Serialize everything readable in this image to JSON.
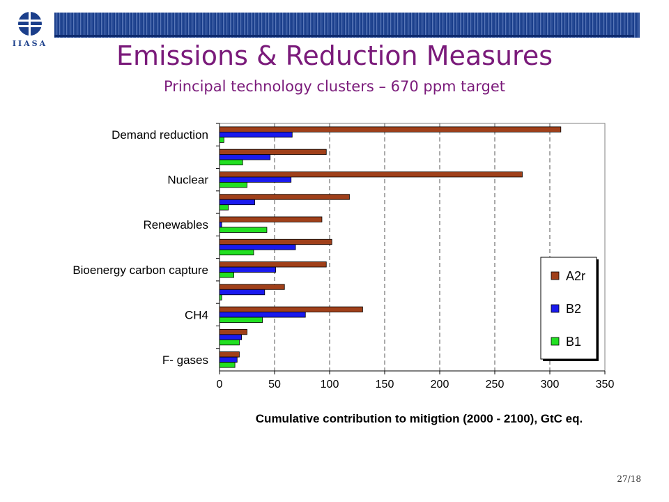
{
  "header": {
    "logo_text": "IIASA",
    "title": "Emissions & Reduction Measures",
    "subtitle": "Principal technology clusters – 670 ppm target"
  },
  "page_number": "27/18",
  "chart_data": {
    "type": "bar",
    "orientation": "horizontal",
    "categories": [
      "Demand reduction",
      "",
      "Nuclear",
      "",
      "Renewables",
      "",
      "Bioenergy carbon capture",
      "",
      "CH4",
      "",
      "F- gases"
    ],
    "series": [
      {
        "name": "A2r",
        "color": "#a0401a",
        "values": [
          310,
          97,
          275,
          118,
          93,
          102,
          97,
          59,
          130,
          25,
          18
        ]
      },
      {
        "name": "B2",
        "color": "#1a1aee",
        "values": [
          66,
          46,
          65,
          32,
          2,
          69,
          51,
          41,
          78,
          20,
          16
        ]
      },
      {
        "name": "B1",
        "color": "#22e022",
        "values": [
          4,
          21,
          25,
          8,
          43,
          31,
          13,
          2,
          39,
          18,
          14
        ]
      }
    ],
    "xlabel": "Cumulative contribution to mitigtion (2000 - 2100), GtC eq.",
    "xlim": [
      0,
      350
    ],
    "xticks": [
      "0",
      "50",
      "100",
      "150",
      "200",
      "250",
      "300",
      "350"
    ],
    "grid": "vertical dashed",
    "legend_position": "right"
  }
}
